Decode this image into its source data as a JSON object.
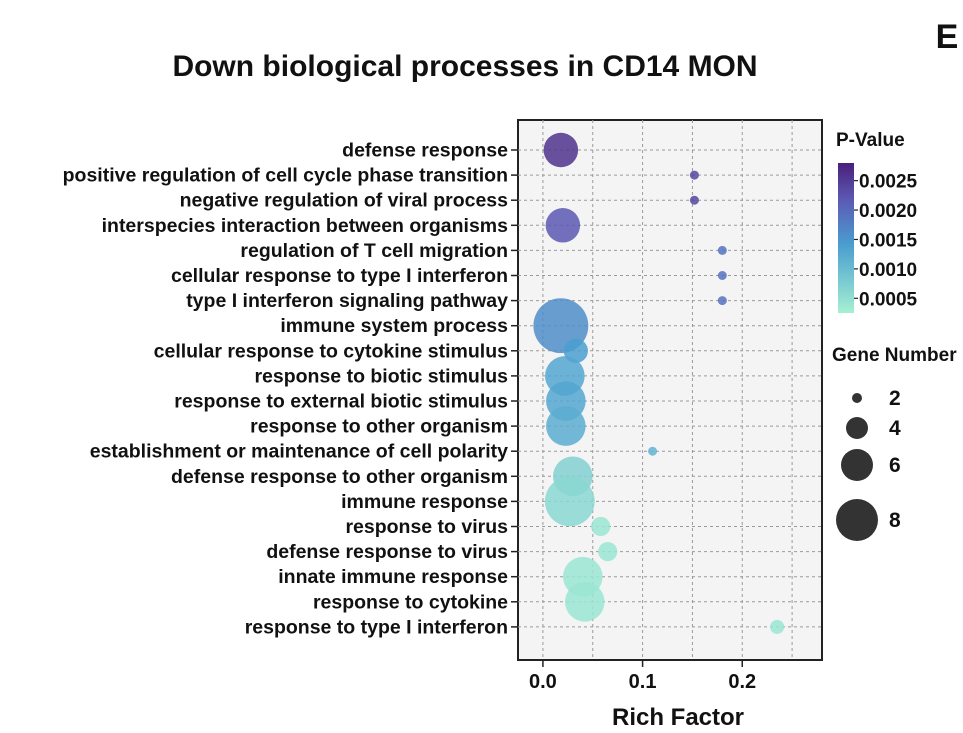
{
  "panel_letter": "E",
  "chart_data": {
    "type": "scatter",
    "subtype": "bubble",
    "title": "Down biological processes in CD14 MON",
    "xlabel": "Rich Factor",
    "ylabel": "",
    "xlim": [
      -0.025,
      0.28
    ],
    "xticks": [
      0.0,
      0.1,
      0.2
    ],
    "xtick_labels": [
      "0.0",
      "0.1",
      "0.2"
    ],
    "grid": true,
    "categories": [
      "defense response",
      "positive regulation of cell cycle phase  transition",
      "negative regulation of viral process",
      "interspecies interaction between organisms",
      "regulation of T cell migration",
      "cellular response to type I interferon",
      "type I interferon signaling pathway",
      "immune system process",
      "cellular response to cytokine stimulus",
      "response to biotic stimulus",
      "response to external biotic stimulus",
      "response to other organism",
      "establishment or maintenance of cell polarity",
      "defense response to other organism",
      "immune response",
      "response to virus",
      "defense response to virus",
      "innate immune response",
      "response to cytokine",
      "response to type I interferon"
    ],
    "points": [
      {
        "term": "defense response",
        "rich_factor": 0.018,
        "gene_number": 6,
        "p_value": 0.0026
      },
      {
        "term": "positive regulation of cell cycle phase  transition",
        "rich_factor": 0.152,
        "gene_number": 1,
        "p_value": 0.0024
      },
      {
        "term": "negative regulation of viral process",
        "rich_factor": 0.152,
        "gene_number": 1,
        "p_value": 0.0024
      },
      {
        "term": "interspecies interaction between organisms",
        "rich_factor": 0.02,
        "gene_number": 6,
        "p_value": 0.0022
      },
      {
        "term": "regulation of T cell migration",
        "rich_factor": 0.18,
        "gene_number": 1,
        "p_value": 0.0019
      },
      {
        "term": "cellular response to type I interferon",
        "rich_factor": 0.18,
        "gene_number": 1,
        "p_value": 0.0019
      },
      {
        "term": "type I interferon signaling pathway",
        "rich_factor": 0.18,
        "gene_number": 1,
        "p_value": 0.0019
      },
      {
        "term": "immune system process",
        "rich_factor": 0.018,
        "gene_number": 10,
        "p_value": 0.0016
      },
      {
        "term": "cellular response to cytokine stimulus",
        "rich_factor": 0.033,
        "gene_number": 4,
        "p_value": 0.0014
      },
      {
        "term": "response to biotic stimulus",
        "rich_factor": 0.022,
        "gene_number": 7,
        "p_value": 0.0013
      },
      {
        "term": "response to external biotic stimulus",
        "rich_factor": 0.023,
        "gene_number": 7,
        "p_value": 0.0013
      },
      {
        "term": "response to other organism",
        "rich_factor": 0.023,
        "gene_number": 7,
        "p_value": 0.0012
      },
      {
        "term": "establishment or maintenance of cell polarity",
        "rich_factor": 0.11,
        "gene_number": 1,
        "p_value": 0.0011
      },
      {
        "term": "defense response to other organism",
        "rich_factor": 0.03,
        "gene_number": 7,
        "p_value": 0.0007
      },
      {
        "term": "immune response",
        "rich_factor": 0.027,
        "gene_number": 9,
        "p_value": 0.0006
      },
      {
        "term": "response to virus",
        "rich_factor": 0.058,
        "gene_number": 3,
        "p_value": 0.0004
      },
      {
        "term": "defense response to virus",
        "rich_factor": 0.065,
        "gene_number": 3,
        "p_value": 0.0004
      },
      {
        "term": "innate immune response",
        "rich_factor": 0.04,
        "gene_number": 7,
        "p_value": 0.0004
      },
      {
        "term": "response to cytokine",
        "rich_factor": 0.042,
        "gene_number": 7,
        "p_value": 0.0004
      },
      {
        "term": "response to type I interferon",
        "rich_factor": 0.235,
        "gene_number": 2,
        "p_value": 0.0004
      }
    ],
    "color_legend": {
      "title": "P-Value",
      "range": [
        0.00025,
        0.0028
      ],
      "ticks": [
        0.0025,
        0.002,
        0.0015,
        0.001,
        0.0005
      ],
      "tick_labels": [
        "0.0025",
        "0.0020",
        "0.0015",
        "0.0010",
        "0.0005"
      ],
      "low_color": "#a6f0d2",
      "mid_color": "#4a9fd0",
      "high_color": "#4b1f7a"
    },
    "size_legend": {
      "title": "Gene Number",
      "sizes": [
        2,
        4,
        6,
        8
      ],
      "labels": [
        "2",
        "4",
        "6",
        "8"
      ]
    }
  }
}
